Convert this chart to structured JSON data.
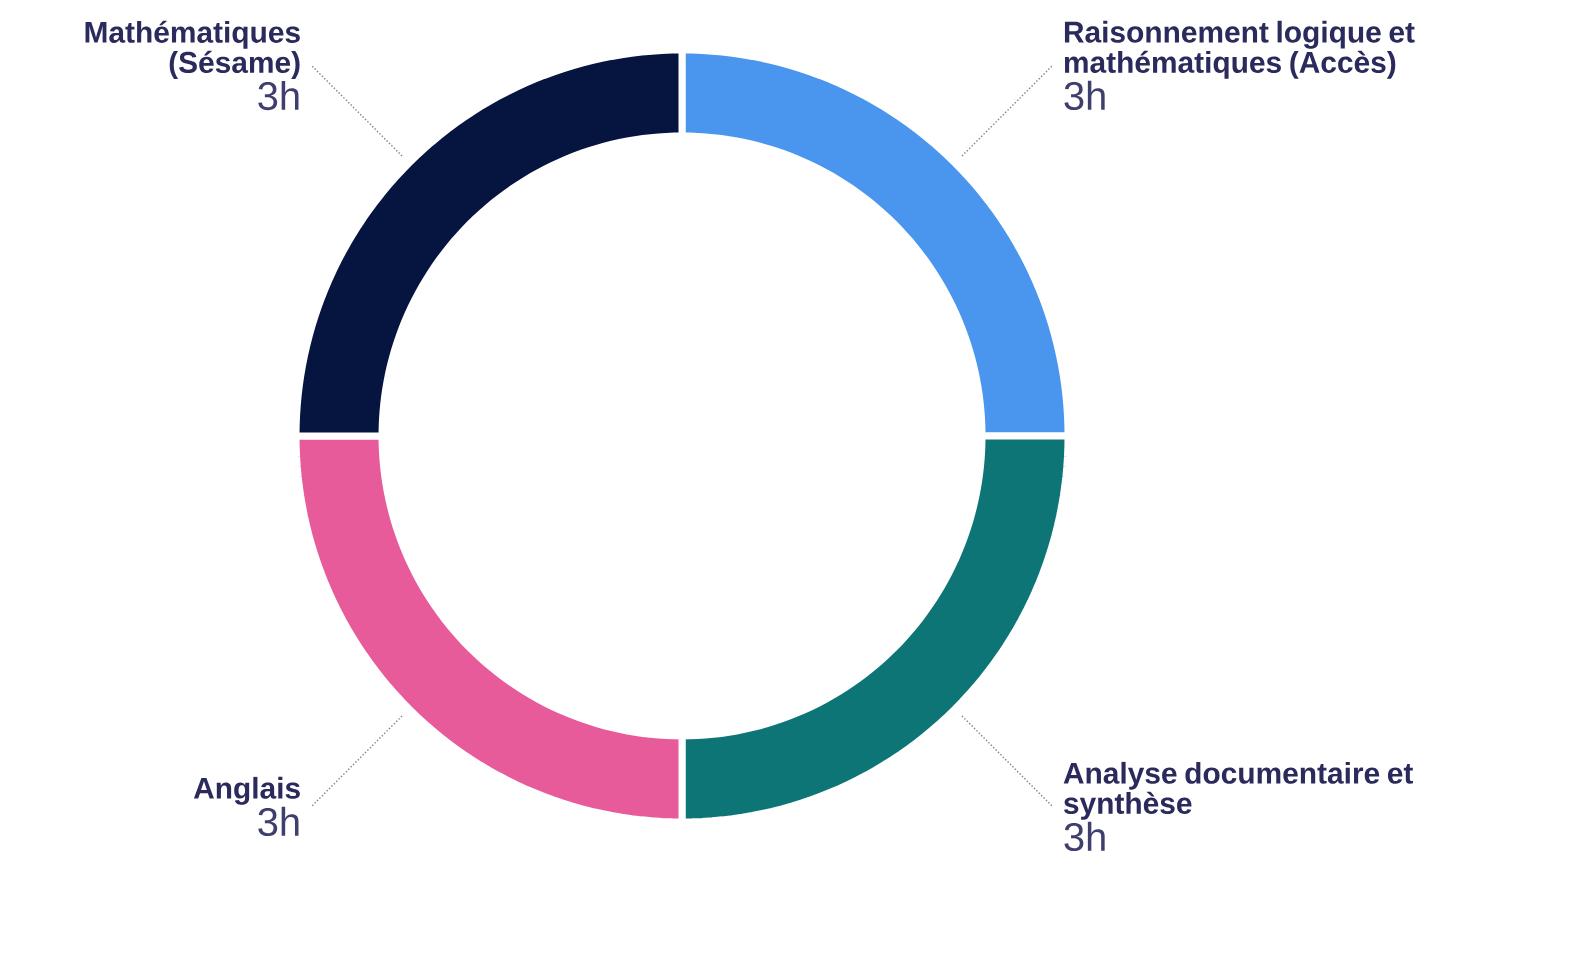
{
  "chart_data": {
    "type": "donut",
    "categories": [
      "Raisonnement logique et mathématiques (Accès)",
      "Analyse documentaire et synthèse",
      "Anglais",
      "Mathématiques (Sésame)"
    ],
    "values": [
      3,
      3,
      3,
      3
    ],
    "value_labels": [
      "3h",
      "3h",
      "3h",
      "3h"
    ],
    "colors": [
      "#4a96ee",
      "#0e7577",
      "#e85b9b",
      "#061440"
    ]
  }
}
